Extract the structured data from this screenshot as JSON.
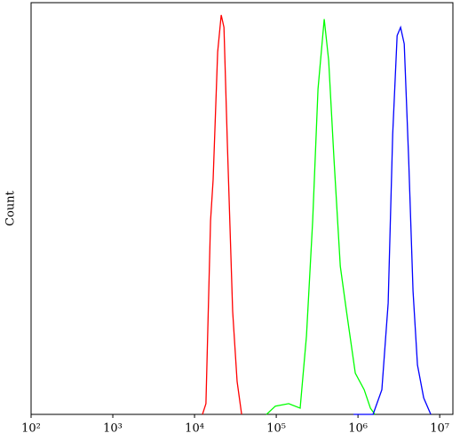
{
  "chart_data": {
    "type": "line",
    "y_label": "Count",
    "xscale": "log",
    "xlim": [
      100,
      14500000
    ],
    "ylim": [
      0,
      100
    ],
    "xticks": [
      {
        "value": 100,
        "label": "10²"
      },
      {
        "value": 1000,
        "label": "10³"
      },
      {
        "value": 10000,
        "label": "10⁴"
      },
      {
        "value": 100000,
        "label": "10⁵"
      },
      {
        "value": 1000000,
        "label": "10⁶"
      },
      {
        "value": 10000000,
        "label": "10⁷"
      }
    ],
    "series": [
      {
        "color": "#ff0000",
        "x": [
          12500,
          13800,
          15700,
          16900,
          19200,
          21200,
          22900,
          25200,
          29300,
          33200,
          37700
        ],
        "values": [
          0,
          2.6,
          47,
          57,
          88,
          97,
          94,
          66,
          25,
          8,
          0
        ]
      },
      {
        "color": "#00ff00",
        "x": [
          75900,
          97500,
          142000,
          196000,
          234000,
          279000,
          324000,
          386000,
          438000,
          509000,
          607000,
          723000,
          927000,
          1190000,
          1420000,
          1610000
        ],
        "values": [
          0,
          2,
          2.6,
          1.5,
          19,
          47,
          79,
          96,
          86,
          62,
          36,
          25,
          10,
          6,
          1.5,
          0
        ]
      },
      {
        "color": "#0000ff",
        "x": [
          883000,
          1530000,
          1960000,
          2340000,
          2660000,
          3010000,
          3320000,
          3680000,
          4170000,
          4720000,
          5350000,
          6370000,
          7780000
        ],
        "values": [
          0,
          0,
          6,
          27,
          68,
          92,
          94,
          90,
          62,
          30,
          12,
          4,
          0
        ]
      }
    ]
  }
}
